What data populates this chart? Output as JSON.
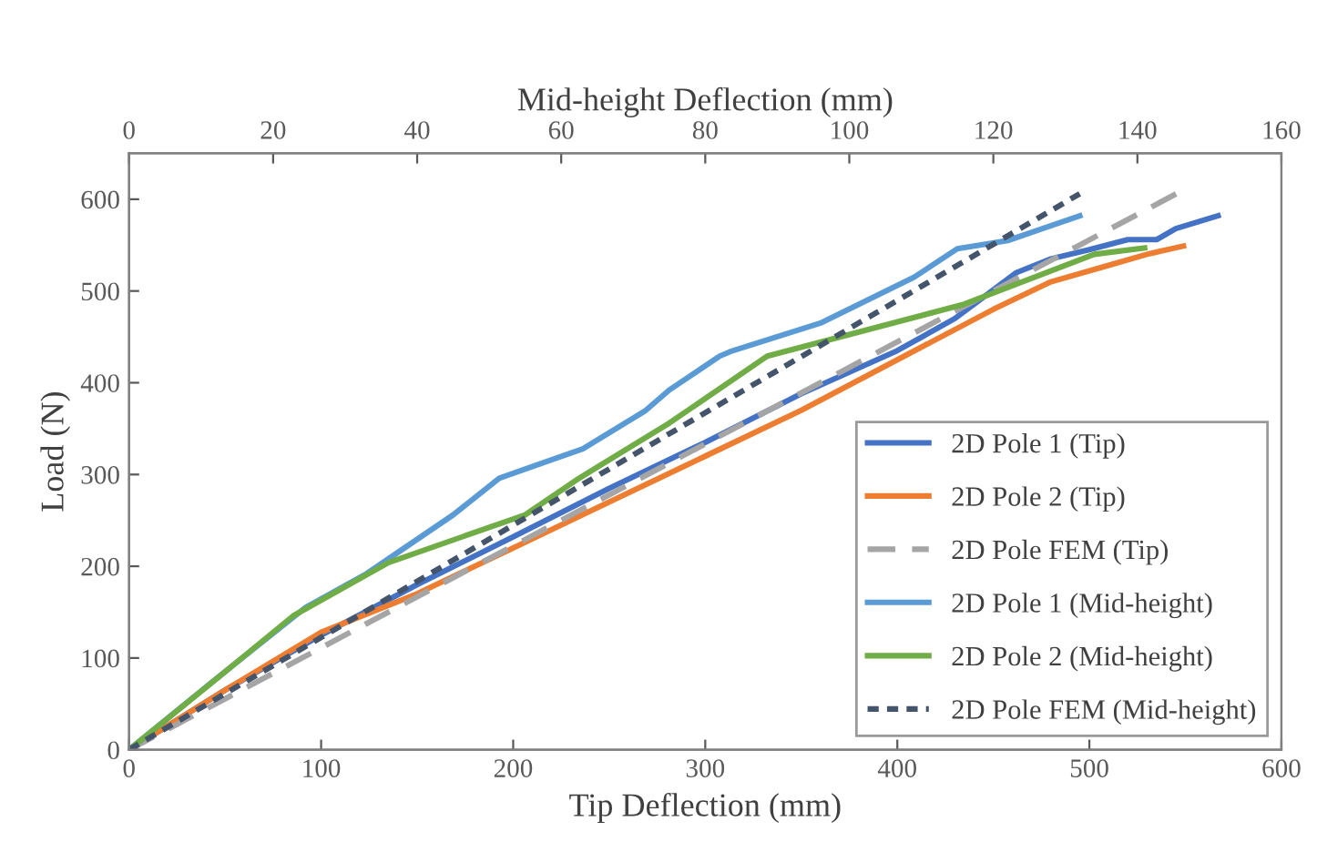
{
  "chart_data": {
    "type": "line",
    "xlabel": "Tip Deflection (mm)",
    "ylabel": "Load (N)",
    "x2label": "Mid-height Deflection (mm)",
    "xlim": [
      0,
      600
    ],
    "xticks": [
      0,
      100,
      200,
      300,
      400,
      500,
      600
    ],
    "x2lim": [
      0,
      160
    ],
    "x2ticks": [
      0,
      20,
      40,
      60,
      80,
      100,
      120,
      140,
      160
    ],
    "ylim": [
      0,
      650
    ],
    "yticks": [
      0,
      100,
      200,
      300,
      400,
      500,
      600
    ],
    "grid": false,
    "legend": "bottom right",
    "series": [
      {
        "name": "2D Pole 1 (Tip)",
        "color": "#4472c4",
        "line_style": "solid",
        "x": [
          0,
          50,
          100,
          150,
          200,
          250,
          300,
          350,
          400,
          430,
          462,
          480,
          500,
          520,
          535,
          545,
          567
        ],
        "values": [
          0,
          65,
          125,
          180,
          232,
          285,
          335,
          388,
          435,
          470,
          520,
          535,
          545,
          556,
          556,
          568,
          582
        ]
      },
      {
        "name": "2D Pole 2 (Tip)",
        "color": "#ed7d31",
        "line_style": "solid",
        "x": [
          0,
          50,
          100,
          150,
          200,
          250,
          300,
          350,
          400,
          450,
          480,
          510,
          530,
          549
        ],
        "values": [
          0,
          65,
          128,
          170,
          220,
          270,
          320,
          370,
          425,
          480,
          510,
          528,
          540,
          549
        ]
      },
      {
        "name": "2D Pole FEM (Tip)",
        "color": "#a5a5a5",
        "line_style": "dashed",
        "x": [
          0,
          548
        ],
        "values": [
          0,
          609
        ]
      },
      {
        "name": "2D Pole 1 (Mid-height)",
        "color": "#5b9bd5",
        "line_style": "solid",
        "axis": "x2",
        "x": [
          0,
          11.4,
          24.5,
          33,
          45,
          51.4,
          63,
          71.6,
          75,
          82,
          83.5,
          96,
          109,
          115,
          122,
          132
        ],
        "values": [
          0,
          73,
          155,
          192,
          256,
          296,
          328,
          369,
          392,
          429,
          434,
          465,
          515,
          546,
          555,
          582
        ]
      },
      {
        "name": "2D Pole 2 (Mid-height)",
        "color": "#70ad47",
        "line_style": "solid",
        "axis": "x2",
        "x": [
          0,
          11,
          22.8,
          36,
          55,
          62.5,
          75,
          88.6,
          115.7,
          134,
          141
        ],
        "values": [
          0,
          70,
          146,
          204,
          256,
          296,
          356,
          429,
          485,
          540,
          547
        ]
      },
      {
        "name": "2D Pole FEM (Mid-height)",
        "color": "#44546a",
        "line_style": "dotted",
        "axis": "x2",
        "x": [
          0,
          132
        ],
        "values": [
          0,
          606
        ]
      }
    ]
  }
}
